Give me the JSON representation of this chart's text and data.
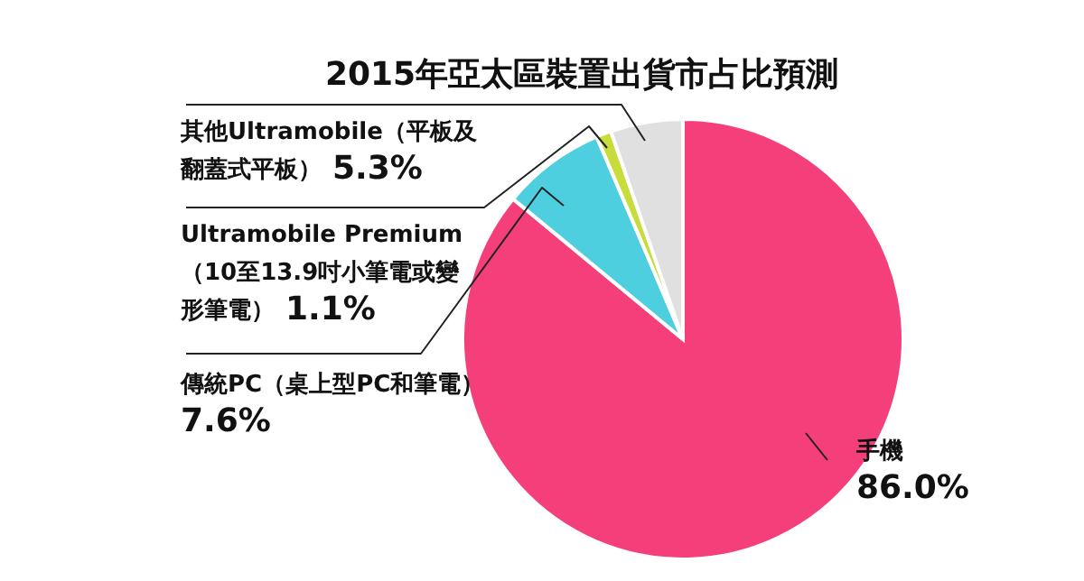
{
  "chart_data": {
    "type": "pie",
    "title": "2015年亞太區裝置出貨市占比預測",
    "categories": [
      "手機",
      "傳統PC（桌上型PC和筆電）",
      "Ultramobile Premium（10至13.9吋小筆電或變形筆電）",
      "其他Ultramobile（平板及翻蓋式平板）"
    ],
    "values": [
      86.0,
      7.6,
      1.1,
      5.3
    ],
    "colors": [
      "#f53f7b",
      "#4ecfe0",
      "#c8dc3c",
      "#e0e0e0"
    ],
    "value_labels": [
      "86.0%",
      "7.6%",
      "1.1%",
      "5.3%"
    ]
  }
}
